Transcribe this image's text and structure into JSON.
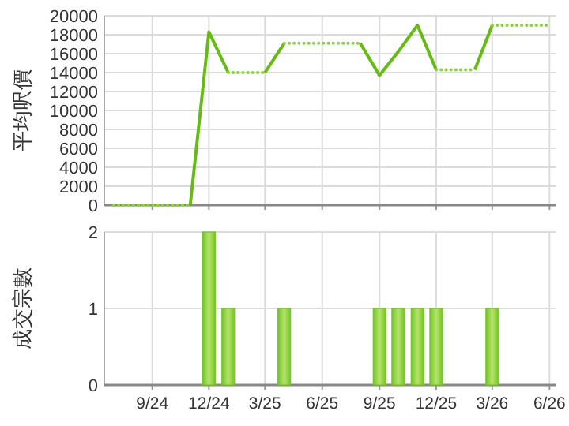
{
  "chart_data": [
    {
      "type": "line",
      "ylabel": "平均呎價",
      "xlim": [
        "2024-06-16",
        "2026-06-12"
      ],
      "ylim": [
        0,
        20000
      ],
      "yticks": [
        0,
        2000,
        4000,
        6000,
        8000,
        10000,
        12000,
        14000,
        16000,
        18000,
        20000
      ],
      "xticks": [
        {
          "value": "2024-09",
          "label": null
        },
        {
          "value": "2024-12",
          "label": null
        },
        {
          "value": "2025-03",
          "label": null
        },
        {
          "value": "2025-06",
          "label": null
        },
        {
          "value": "2025-09",
          "label": null
        },
        {
          "value": "2025-12",
          "label": null
        },
        {
          "value": "2026-03",
          "label": null
        },
        {
          "value": "2026-06",
          "label": null
        }
      ],
      "grid": true,
      "tick_labels": "y",
      "series": [
        {
          "color": "#8ad436",
          "line_style": "dotted",
          "x": [
            "2024-07",
            "2024-08",
            "2024-09",
            "2024-10",
            "2024-11"
          ],
          "values": [
            0,
            0,
            0,
            0,
            0
          ]
        },
        {
          "color": "#66bb14",
          "line_style": "solid",
          "x": [
            "2024-11",
            "2024-12",
            "2025-01"
          ],
          "values": [
            0,
            18300,
            14000
          ]
        },
        {
          "color": "#8ad436",
          "line_style": "dotted",
          "x": [
            "2025-01",
            "2025-02",
            "2025-03"
          ],
          "values": [
            14000,
            14000,
            14000
          ]
        },
        {
          "color": "#66bb14",
          "line_style": "solid",
          "x": [
            "2025-03",
            "2025-04"
          ],
          "values": [
            14000,
            17100
          ]
        },
        {
          "color": "#8ad436",
          "line_style": "dotted",
          "x": [
            "2025-04",
            "2025-05",
            "2025-06",
            "2025-07",
            "2025-08"
          ],
          "values": [
            17100,
            17100,
            17100,
            17100,
            17100
          ]
        },
        {
          "color": "#66bb14",
          "line_style": "solid",
          "x": [
            "2025-08",
            "2025-09",
            "2025-10",
            "2025-11",
            "2025-12"
          ],
          "values": [
            17100,
            13700,
            16200,
            19000,
            14300
          ]
        },
        {
          "color": "#8ad436",
          "line_style": "dotted",
          "x": [
            "2025-12",
            "2026-01",
            "2026-02"
          ],
          "values": [
            14300,
            14300,
            14300
          ]
        },
        {
          "color": "#66bb14",
          "line_style": "solid",
          "x": [
            "2026-02",
            "2026-03"
          ],
          "values": [
            14300,
            19000
          ]
        },
        {
          "color": "#8ad436",
          "line_style": "dotted",
          "x": [
            "2026-03",
            "2026-04",
            "2026-05",
            "2026-06"
          ],
          "values": [
            19000,
            19000,
            19000,
            19000
          ]
        }
      ]
    },
    {
      "type": "bar",
      "ylabel": "成交宗數",
      "xlim": [
        "2024-06-16",
        "2026-06-12"
      ],
      "ylim": [
        0,
        2
      ],
      "yticks": [
        0,
        1,
        2
      ],
      "xticks": [
        {
          "value": "2024-09",
          "label": "9/24"
        },
        {
          "value": "2024-12",
          "label": "12/24"
        },
        {
          "value": "2025-03",
          "label": "3/25"
        },
        {
          "value": "2025-06",
          "label": "6/25"
        },
        {
          "value": "2025-09",
          "label": "9/25"
        },
        {
          "value": "2025-12",
          "label": "12/25"
        },
        {
          "value": "2026-03",
          "label": "3/26"
        },
        {
          "value": "2026-06",
          "label": "6/26"
        }
      ],
      "grid": true,
      "series": [
        {
          "color": "#74c526",
          "x": [
            "2024-12",
            "2025-01",
            "2025-04",
            "2025-09",
            "2025-10",
            "2025-11",
            "2025-12",
            "2026-03"
          ],
          "values": [
            2,
            1,
            1,
            1,
            1,
            1,
            1,
            1
          ]
        }
      ]
    }
  ]
}
